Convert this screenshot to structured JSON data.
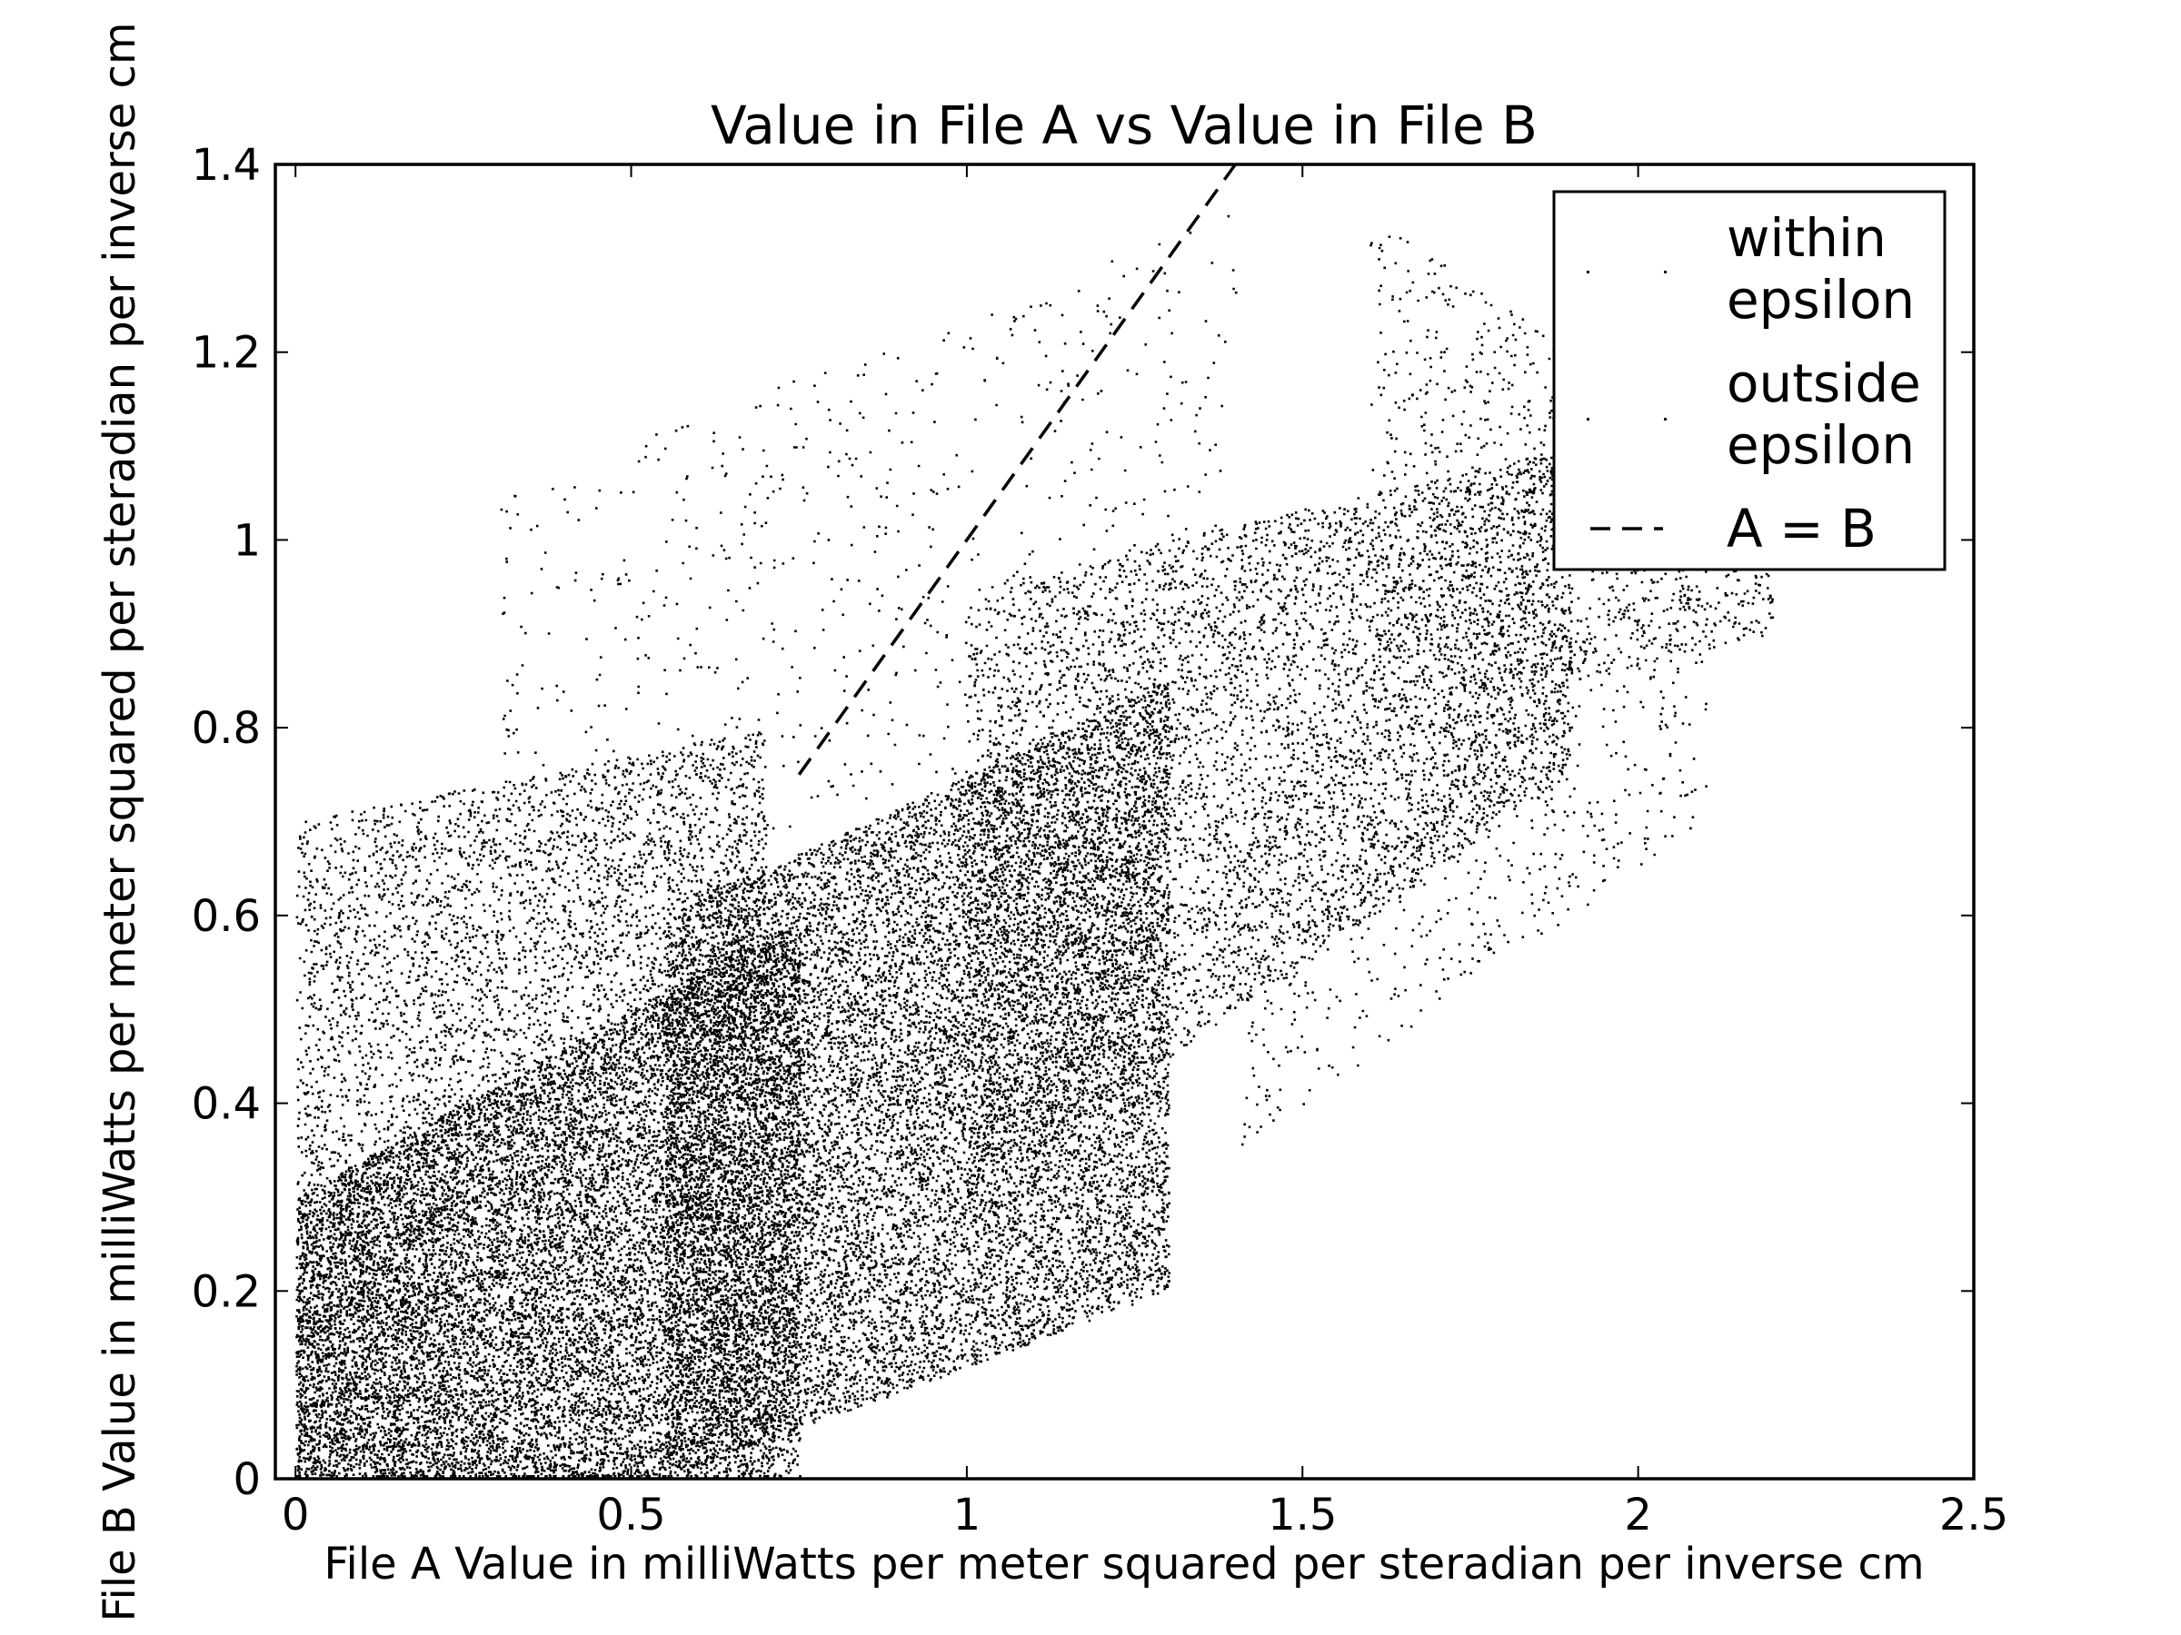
{
  "chart_data": {
    "type": "scatter",
    "title": "Value in File A vs Value in File B",
    "xlabel": "File A Value in milliWatts per meter squared per steradian per inverse cm",
    "ylabel": "File B Value in milliWatts per meter squared per steradian per inverse cm",
    "xlim": [
      -0.03,
      2.5
    ],
    "ylim": [
      0,
      1.4
    ],
    "x_ticks": [
      0,
      0.5,
      1,
      1.5,
      2,
      2.5
    ],
    "x_tick_labels": [
      "0",
      "0.5",
      "1",
      "1.5",
      "2",
      "2.5"
    ],
    "y_ticks": [
      0,
      0.2,
      0.4,
      0.6,
      0.8,
      1,
      1.2,
      1.4
    ],
    "y_tick_labels": [
      "0",
      "0.2",
      "0.4",
      "0.6",
      "0.8",
      "1",
      "1.2",
      "1.4"
    ],
    "grid": false,
    "legend": {
      "placement": "top-right",
      "entries": [
        {
          "label_lines": [
            "within",
            "epsilon"
          ],
          "marker": "dot"
        },
        {
          "label_lines": [
            "outside",
            "epsilon"
          ],
          "marker": "dot"
        },
        {
          "label_lines": [
            "A = B"
          ],
          "marker": "dashed-line"
        }
      ]
    },
    "series": [
      {
        "name": "within epsilon",
        "marker": "dot",
        "color": "#000000",
        "clusters": [
          {
            "x_range": [
              0,
              0.75
            ],
            "y_min_start": 0.0,
            "y_min_end": 0.0,
            "y_max_start": 0.3,
            "y_max_end": 0.6,
            "density": "very high"
          },
          {
            "x_range": [
              0.55,
              1.3
            ],
            "y_min_start": 0.0,
            "y_min_end": 0.2,
            "y_max_start": 0.6,
            "y_max_end": 0.85,
            "density": "very high"
          },
          {
            "x_range": [
              0.0,
              0.7
            ],
            "y_min_start": 0.3,
            "y_min_end": 0.5,
            "y_max_start": 0.7,
            "y_max_end": 0.8,
            "density": "medium"
          },
          {
            "x_range": [
              1.0,
              1.9
            ],
            "y_min_start": 0.3,
            "y_min_end": 0.75,
            "y_max_start": 0.95,
            "y_max_end": 1.1,
            "density": "high"
          },
          {
            "x_range": [
              1.6,
              2.2
            ],
            "y_min_start": 0.8,
            "y_min_end": 0.9,
            "y_max_start": 1.35,
            "y_max_end": 1.05,
            "density": "low"
          }
        ]
      },
      {
        "name": "outside epsilon",
        "marker": "dot",
        "color": "#000000",
        "clusters": [
          {
            "x_range": [
              0.3,
              1.4
            ],
            "y_min_start": 0.6,
            "y_min_end": 0.8,
            "y_max_start": 1.05,
            "y_max_end": 1.35,
            "density": "sparse"
          },
          {
            "x_range": [
              1.4,
              2.1
            ],
            "y_min_start": 0.35,
            "y_min_end": 0.7,
            "y_max_start": 0.7,
            "y_max_end": 1.0,
            "density": "sparse"
          }
        ]
      },
      {
        "name": "A = B",
        "type": "line",
        "style": "dashed",
        "color": "#000000",
        "x": [
          0.75,
          1.4
        ],
        "y": [
          0.75,
          1.4
        ]
      }
    ]
  }
}
